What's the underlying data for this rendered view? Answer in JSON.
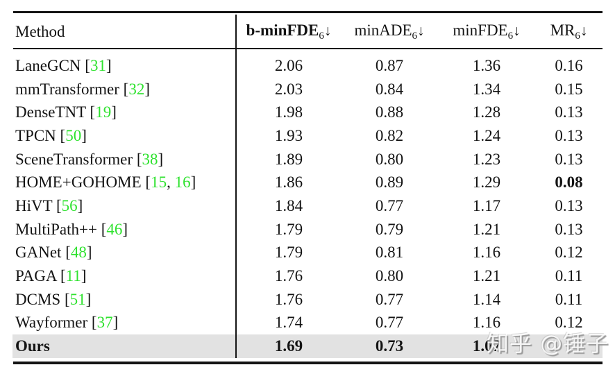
{
  "table": {
    "method_header": "Method",
    "columns": [
      {
        "name": "b-minFDE",
        "sub": "6",
        "arrow": "↓",
        "bold": true
      },
      {
        "name": "minADE",
        "sub": "6",
        "arrow": "↓",
        "bold": false
      },
      {
        "name": "minFDE",
        "sub": "6",
        "arrow": "↓",
        "bold": false
      },
      {
        "name": "MR",
        "sub": "6",
        "arrow": "↓",
        "bold": false
      }
    ],
    "citation": {
      "open": " [",
      "separator": ", ",
      "close": "]"
    },
    "rows": [
      {
        "method": "LaneGCN",
        "refs": [
          "31"
        ],
        "values": [
          "2.06",
          "0.87",
          "1.36",
          "0.16"
        ],
        "bold_method": false,
        "bold_cols": [],
        "highlight": false
      },
      {
        "method": "mmTransformer",
        "refs": [
          "32"
        ],
        "values": [
          "2.03",
          "0.84",
          "1.34",
          "0.15"
        ],
        "bold_method": false,
        "bold_cols": [],
        "highlight": false
      },
      {
        "method": "DenseTNT",
        "refs": [
          "19"
        ],
        "values": [
          "1.98",
          "0.88",
          "1.28",
          "0.13"
        ],
        "bold_method": false,
        "bold_cols": [],
        "highlight": false
      },
      {
        "method": "TPCN",
        "refs": [
          "50"
        ],
        "values": [
          "1.93",
          "0.82",
          "1.24",
          "0.13"
        ],
        "bold_method": false,
        "bold_cols": [],
        "highlight": false
      },
      {
        "method": "SceneTransformer",
        "refs": [
          "38"
        ],
        "values": [
          "1.89",
          "0.80",
          "1.23",
          "0.13"
        ],
        "bold_method": false,
        "bold_cols": [],
        "highlight": false
      },
      {
        "method": "HOME+GOHOME",
        "refs": [
          "15",
          "16"
        ],
        "values": [
          "1.86",
          "0.89",
          "1.29",
          "0.08"
        ],
        "bold_method": false,
        "bold_cols": [
          3
        ],
        "highlight": false
      },
      {
        "method": "HiVT",
        "refs": [
          "56"
        ],
        "values": [
          "1.84",
          "0.77",
          "1.17",
          "0.13"
        ],
        "bold_method": false,
        "bold_cols": [],
        "highlight": false
      },
      {
        "method": "MultiPath++",
        "refs": [
          "46"
        ],
        "values": [
          "1.79",
          "0.79",
          "1.21",
          "0.13"
        ],
        "bold_method": false,
        "bold_cols": [],
        "highlight": false
      },
      {
        "method": "GANet",
        "refs": [
          "48"
        ],
        "values": [
          "1.79",
          "0.81",
          "1.16",
          "0.12"
        ],
        "bold_method": false,
        "bold_cols": [],
        "highlight": false
      },
      {
        "method": "PAGA",
        "refs": [
          "11"
        ],
        "values": [
          "1.76",
          "0.80",
          "1.21",
          "0.11"
        ],
        "bold_method": false,
        "bold_cols": [],
        "highlight": false
      },
      {
        "method": "DCMS",
        "refs": [
          "51"
        ],
        "values": [
          "1.76",
          "0.77",
          "1.14",
          "0.11"
        ],
        "bold_method": false,
        "bold_cols": [],
        "highlight": false
      },
      {
        "method": "Wayformer",
        "refs": [
          "37"
        ],
        "values": [
          "1.74",
          "0.77",
          "1.16",
          "0.12"
        ],
        "bold_method": false,
        "bold_cols": [],
        "highlight": false
      },
      {
        "method": "Ours",
        "refs": [],
        "values": [
          "1.69",
          "0.73",
          "1.07",
          ""
        ],
        "bold_method": true,
        "bold_cols": [
          0,
          1,
          2,
          3
        ],
        "highlight": true
      }
    ],
    "colors": {
      "citation_green": "#2ee22e",
      "highlight_row_bg": "#e2e2e2",
      "rule_black": "#141414"
    }
  },
  "watermark": {
    "text": "知乎 @锤子"
  }
}
